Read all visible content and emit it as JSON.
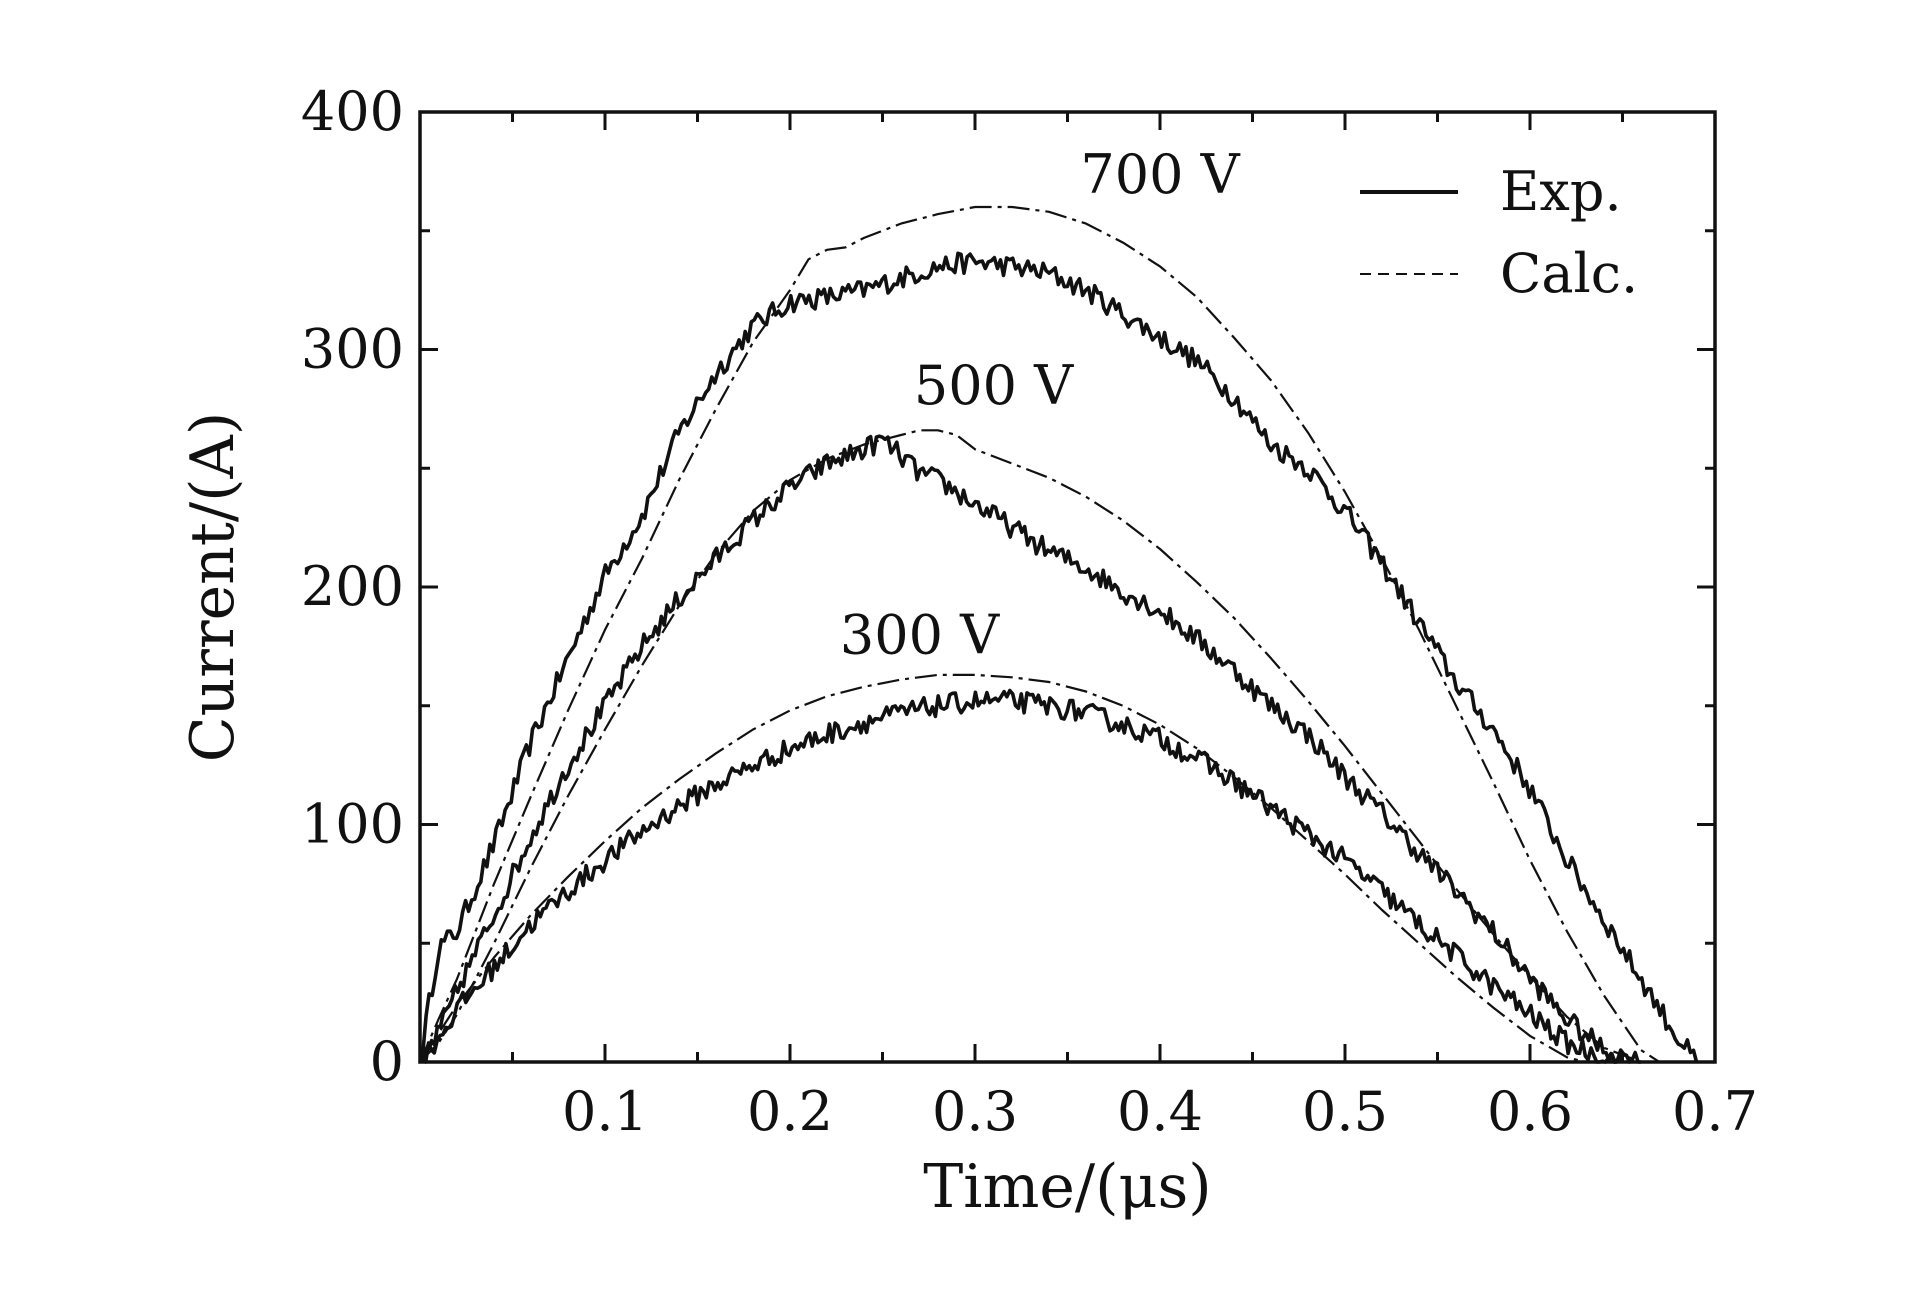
{
  "chart_data": {
    "type": "line",
    "title": "",
    "xlabel": "Time/(μs)",
    "ylabel": "Current/(A)",
    "xlim": [
      0,
      0.7
    ],
    "ylim": [
      0,
      400
    ],
    "x_ticks": [
      0.1,
      0.2,
      0.3,
      0.4,
      0.5,
      0.6,
      0.7
    ],
    "x_tick_labels": [
      "0.1",
      "0.2",
      "0.3",
      "0.4",
      "0.5",
      "0.6",
      "0.7"
    ],
    "x_minor_step": 0.05,
    "y_ticks": [
      0,
      100,
      200,
      300,
      400
    ],
    "y_tick_labels": [
      "0",
      "100",
      "200",
      "300",
      "400"
    ],
    "y_minor_step": 50,
    "grid": false,
    "legend": {
      "position": "top-right",
      "entries": [
        {
          "label": "Exp.",
          "style": "solid"
        },
        {
          "label": "Calc.",
          "style": "dashed"
        }
      ]
    },
    "annotations": [
      {
        "text": "700 V",
        "x": 0.4,
        "y": 366
      },
      {
        "text": "500 V",
        "x": 0.31,
        "y": 277
      },
      {
        "text": "300 V",
        "x": 0.27,
        "y": 172
      }
    ],
    "series": [
      {
        "name": "700 V Exp.",
        "style": "solid",
        "x": [
          0,
          0.005,
          0.01,
          0.02,
          0.04,
          0.06,
          0.08,
          0.1,
          0.12,
          0.14,
          0.16,
          0.18,
          0.2,
          0.22,
          0.24,
          0.26,
          0.28,
          0.3,
          0.32,
          0.34,
          0.36,
          0.38,
          0.4,
          0.42,
          0.44,
          0.46,
          0.48,
          0.5,
          0.52,
          0.54,
          0.56,
          0.58,
          0.6,
          0.62,
          0.64,
          0.66,
          0.68,
          0.69
        ],
        "y": [
          0,
          25,
          48,
          55,
          92,
          135,
          170,
          205,
          230,
          265,
          290,
          310,
          320,
          322,
          325,
          330,
          335,
          337,
          335,
          332,
          325,
          315,
          305,
          295,
          280,
          260,
          250,
          232,
          210,
          185,
          160,
          140,
          115,
          85,
          60,
          35,
          10,
          0
        ]
      },
      {
        "name": "700 V Calc.",
        "style": "dashed",
        "x": [
          0,
          0.01,
          0.02,
          0.04,
          0.06,
          0.08,
          0.1,
          0.12,
          0.14,
          0.16,
          0.18,
          0.2,
          0.21,
          0.22,
          0.23,
          0.24,
          0.26,
          0.28,
          0.3,
          0.32,
          0.34,
          0.36,
          0.38,
          0.4,
          0.42,
          0.44,
          0.46,
          0.48,
          0.5,
          0.52,
          0.54,
          0.56,
          0.58,
          0.6,
          0.62,
          0.64,
          0.66,
          0.67
        ],
        "y": [
          0,
          18,
          35,
          75,
          112,
          148,
          182,
          212,
          245,
          275,
          303,
          325,
          338,
          342,
          343,
          347,
          353,
          357,
          360,
          360,
          358,
          353,
          345,
          335,
          322,
          305,
          287,
          265,
          240,
          212,
          182,
          150,
          118,
          85,
          55,
          28,
          5,
          0
        ]
      },
      {
        "name": "500 V Exp.",
        "style": "solid",
        "x": [
          0,
          0.01,
          0.02,
          0.04,
          0.06,
          0.08,
          0.1,
          0.12,
          0.14,
          0.16,
          0.18,
          0.2,
          0.22,
          0.24,
          0.25,
          0.26,
          0.27,
          0.28,
          0.3,
          0.32,
          0.34,
          0.36,
          0.38,
          0.4,
          0.42,
          0.44,
          0.46,
          0.48,
          0.5,
          0.52,
          0.54,
          0.56,
          0.58,
          0.6,
          0.62,
          0.64,
          0.66
        ],
        "y": [
          0,
          12,
          30,
          62,
          95,
          125,
          150,
          175,
          195,
          212,
          228,
          242,
          252,
          258,
          262,
          255,
          248,
          245,
          235,
          225,
          215,
          208,
          198,
          190,
          178,
          165,
          150,
          138,
          120,
          105,
          88,
          72,
          55,
          35,
          18,
          5,
          0
        ]
      },
      {
        "name": "500 V Calc.",
        "style": "dashed",
        "x": [
          0,
          0.01,
          0.02,
          0.04,
          0.06,
          0.08,
          0.1,
          0.12,
          0.14,
          0.16,
          0.18,
          0.2,
          0.22,
          0.24,
          0.26,
          0.27,
          0.28,
          0.29,
          0.3,
          0.32,
          0.34,
          0.36,
          0.38,
          0.4,
          0.42,
          0.44,
          0.46,
          0.48,
          0.5,
          0.52,
          0.54,
          0.56,
          0.58,
          0.6,
          0.62,
          0.64,
          0.66
        ],
        "y": [
          0,
          8,
          20,
          50,
          82,
          112,
          140,
          167,
          192,
          214,
          232,
          245,
          254,
          260,
          264,
          266,
          266,
          264,
          258,
          252,
          246,
          238,
          228,
          216,
          202,
          187,
          170,
          152,
          133,
          113,
          93,
          73,
          54,
          36,
          19,
          6,
          0
        ]
      },
      {
        "name": "300 V Exp.",
        "style": "solid",
        "x": [
          0,
          0.01,
          0.02,
          0.04,
          0.06,
          0.08,
          0.1,
          0.12,
          0.14,
          0.16,
          0.18,
          0.2,
          0.22,
          0.24,
          0.26,
          0.28,
          0.3,
          0.32,
          0.34,
          0.36,
          0.38,
          0.4,
          0.42,
          0.44,
          0.46,
          0.48,
          0.5,
          0.52,
          0.54,
          0.56,
          0.58,
          0.6,
          0.62,
          0.64,
          0.65
        ],
        "y": [
          0,
          10,
          22,
          40,
          58,
          72,
          85,
          97,
          108,
          117,
          125,
          132,
          138,
          143,
          147,
          150,
          152,
          152,
          150,
          147,
          142,
          136,
          128,
          118,
          107,
          96,
          85,
          72,
          58,
          45,
          32,
          20,
          8,
          2,
          0
        ]
      },
      {
        "name": "300 V Calc.",
        "style": "dashed",
        "x": [
          0,
          0.01,
          0.02,
          0.04,
          0.06,
          0.08,
          0.1,
          0.12,
          0.14,
          0.16,
          0.18,
          0.2,
          0.22,
          0.24,
          0.26,
          0.28,
          0.3,
          0.32,
          0.34,
          0.36,
          0.38,
          0.4,
          0.42,
          0.44,
          0.46,
          0.48,
          0.5,
          0.52,
          0.54,
          0.56,
          0.58,
          0.6,
          0.62,
          0.63
        ],
        "y": [
          0,
          12,
          24,
          44,
          62,
          78,
          93,
          107,
          119,
          130,
          140,
          148,
          154,
          158,
          161,
          163,
          163,
          162,
          160,
          156,
          150,
          142,
          132,
          120,
          107,
          93,
          79,
          64,
          50,
          36,
          23,
          11,
          2,
          0
        ]
      }
    ]
  }
}
